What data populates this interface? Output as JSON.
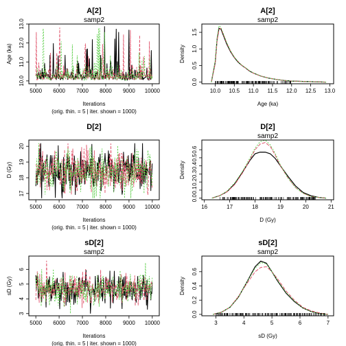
{
  "chart_data": [
    {
      "id": "trace-a2",
      "type": "line",
      "title": "A[2]",
      "subtitle": "samp2",
      "xlabel": "Iterations",
      "ylabel": "Age (ka)",
      "caption": "(orig. thin. = 5 | iter. shown = 1000)",
      "xlim": [
        4700,
        10300
      ],
      "ylim": [
        9.85,
        13.0
      ],
      "xticks": [
        "5000",
        "6000",
        "7000",
        "8000",
        "9000",
        "10000"
      ],
      "yticks": [
        "10.0",
        "11.0",
        "12.0",
        "13.0"
      ],
      "trace": {
        "base": 10.05,
        "typical": 0.55,
        "spike_max": 12.9,
        "skew": "right"
      },
      "series": [
        {
          "color": "#000000"
        },
        {
          "color": "#DF536B"
        },
        {
          "color": "#61D04F"
        }
      ]
    },
    {
      "id": "density-a2",
      "type": "line",
      "title": "A[2]",
      "subtitle": "samp2",
      "xlabel": "Age (ka)",
      "ylabel": "Density",
      "xlim": [
        9.65,
        13.1
      ],
      "ylim": [
        -0.05,
        1.75
      ],
      "xticks": [
        "10.0",
        "10.5",
        "11.0",
        "11.5",
        "12.0",
        "12.5",
        "13.0"
      ],
      "yticks": [
        "0.0",
        "0.5",
        "1.0",
        "1.5"
      ],
      "x": [
        9.9,
        10.0,
        10.05,
        10.1,
        10.15,
        10.2,
        10.3,
        10.4,
        10.5,
        10.6,
        10.7,
        10.8,
        10.9,
        11.0,
        11.2,
        11.4,
        11.6,
        11.8,
        12.0,
        12.3,
        12.6,
        12.9
      ],
      "series": [
        {
          "color": "#000000",
          "values": [
            0.0,
            0.6,
            1.3,
            1.62,
            1.6,
            1.45,
            1.15,
            0.92,
            0.74,
            0.6,
            0.5,
            0.42,
            0.33,
            0.27,
            0.18,
            0.12,
            0.08,
            0.05,
            0.03,
            0.02,
            0.01,
            0.0
          ]
        },
        {
          "color": "#DF536B",
          "values": [
            0.0,
            0.55,
            1.25,
            1.58,
            1.62,
            1.48,
            1.18,
            0.94,
            0.75,
            0.62,
            0.5,
            0.42,
            0.34,
            0.27,
            0.18,
            0.12,
            0.08,
            0.05,
            0.03,
            0.02,
            0.01,
            0.0
          ]
        },
        {
          "color": "#61D04F",
          "values": [
            0.0,
            0.65,
            1.35,
            1.7,
            1.65,
            1.5,
            1.2,
            0.95,
            0.76,
            0.61,
            0.51,
            0.43,
            0.34,
            0.28,
            0.18,
            0.12,
            0.08,
            0.05,
            0.03,
            0.02,
            0.01,
            0.0
          ]
        }
      ],
      "rug": {
        "min": 10.0,
        "max": 12.0,
        "dense_max": 11.3
      }
    },
    {
      "id": "trace-d2",
      "type": "line",
      "title": "D[2]",
      "subtitle": "",
      "xlabel": "Iterations",
      "ylabel": "D (Gy)",
      "caption": "(orig. thin. = 5 | iter. shown = 1000)",
      "xlim": [
        4700,
        10300
      ],
      "ylim": [
        16.6,
        20.4
      ],
      "xticks": [
        "5000",
        "6000",
        "7000",
        "8000",
        "9000",
        "10000"
      ],
      "yticks": [
        "17",
        "18",
        "19",
        "20"
      ],
      "trace": {
        "mean": 18.4,
        "sd": 0.7,
        "min": 16.7,
        "max": 20.2
      },
      "series": [
        {
          "color": "#000000"
        },
        {
          "color": "#DF536B"
        },
        {
          "color": "#61D04F"
        }
      ]
    },
    {
      "id": "density-d2",
      "type": "line",
      "title": "D[2]",
      "subtitle": "samp2",
      "xlabel": "D (Gy)",
      "ylabel": "Density",
      "xlim": [
        15.9,
        21.1
      ],
      "ylim": [
        -0.02,
        0.72
      ],
      "xticks": [
        "16",
        "17",
        "18",
        "19",
        "20",
        "21"
      ],
      "yticks": [
        "0.0",
        "0.1",
        "0.2",
        "0.3",
        "0.4",
        "0.5",
        "0.6"
      ],
      "x": [
        16.3,
        16.6,
        16.9,
        17.2,
        17.5,
        17.8,
        18.0,
        18.2,
        18.4,
        18.6,
        18.8,
        19.0,
        19.3,
        19.6,
        19.9,
        20.2,
        20.5,
        20.8
      ],
      "series": [
        {
          "color": "#000000",
          "values": [
            0.0,
            0.03,
            0.08,
            0.18,
            0.32,
            0.47,
            0.55,
            0.57,
            0.57,
            0.55,
            0.49,
            0.4,
            0.27,
            0.15,
            0.07,
            0.03,
            0.01,
            0.0
          ]
        },
        {
          "color": "#DF536B",
          "values": [
            0.0,
            0.03,
            0.08,
            0.17,
            0.31,
            0.48,
            0.6,
            0.67,
            0.69,
            0.64,
            0.53,
            0.4,
            0.25,
            0.13,
            0.06,
            0.02,
            0.01,
            0.0
          ]
        },
        {
          "color": "#61D04F",
          "values": [
            0.0,
            0.03,
            0.09,
            0.19,
            0.33,
            0.5,
            0.62,
            0.7,
            0.72,
            0.66,
            0.55,
            0.41,
            0.25,
            0.13,
            0.06,
            0.02,
            0.01,
            0.0
          ]
        }
      ],
      "rug": {
        "min": 16.6,
        "max": 20.4,
        "dense_max": 20.0
      }
    },
    {
      "id": "trace-sd2",
      "type": "line",
      "title": "sD[2]",
      "subtitle": "samp2",
      "xlabel": "Iterations",
      "ylabel": "sD (Gy)",
      "caption": "(orig. thin. = 5 | iter. shown = 1000)",
      "xlim": [
        4700,
        10300
      ],
      "ylim": [
        2.85,
        6.9
      ],
      "xticks": [
        "5000",
        "6000",
        "7000",
        "8000",
        "9000",
        "10000"
      ],
      "yticks": [
        "3",
        "4",
        "5",
        "6"
      ],
      "trace": {
        "mean": 4.65,
        "sd": 0.55,
        "min": 3.0,
        "max": 6.7
      },
      "series": [
        {
          "color": "#000000"
        },
        {
          "color": "#DF536B"
        },
        {
          "color": "#61D04F"
        }
      ]
    },
    {
      "id": "density-sd2",
      "type": "line",
      "title": "sD[2]",
      "subtitle": "samp2",
      "xlabel": "sD (Gy)",
      "ylabel": "Density",
      "xlim": [
        2.5,
        7.2
      ],
      "ylim": [
        -0.02,
        0.82
      ],
      "xticks": [
        "3",
        "4",
        "5",
        "6",
        "7"
      ],
      "yticks": [
        "0.0",
        "0.2",
        "0.4",
        "0.6"
      ],
      "x": [
        2.9,
        3.2,
        3.5,
        3.8,
        4.1,
        4.4,
        4.6,
        4.8,
        5.0,
        5.2,
        5.5,
        5.8,
        6.1,
        6.4,
        6.7,
        7.0
      ],
      "series": [
        {
          "color": "#000000",
          "values": [
            0.0,
            0.03,
            0.1,
            0.24,
            0.45,
            0.67,
            0.75,
            0.72,
            0.6,
            0.47,
            0.3,
            0.18,
            0.09,
            0.04,
            0.01,
            0.0
          ]
        },
        {
          "color": "#DF536B",
          "values": [
            0.0,
            0.03,
            0.1,
            0.25,
            0.43,
            0.6,
            0.66,
            0.67,
            0.6,
            0.5,
            0.33,
            0.2,
            0.1,
            0.05,
            0.02,
            0.0
          ]
        },
        {
          "color": "#61D04F",
          "values": [
            0.0,
            0.03,
            0.1,
            0.24,
            0.45,
            0.65,
            0.73,
            0.71,
            0.6,
            0.48,
            0.31,
            0.19,
            0.09,
            0.04,
            0.01,
            0.0
          ]
        }
      ],
      "rug": {
        "min": 3.0,
        "max": 6.9,
        "dense_max": 6.0
      }
    }
  ]
}
